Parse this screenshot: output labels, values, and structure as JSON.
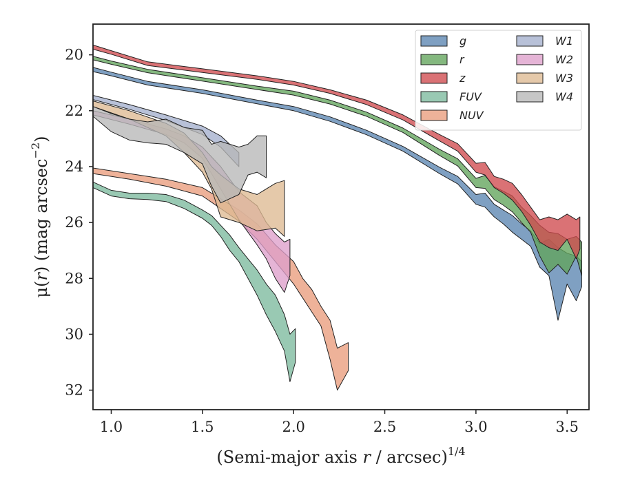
{
  "chart_data": {
    "type": "area",
    "xlabel_main": "(Semi-major axis ",
    "xlabel_var": "r",
    "xlabel_unit": " / arcsec)",
    "xlabel_sup": "1/4",
    "ylabel_pre": "μ(",
    "ylabel_var": "r",
    "ylabel_mid": ") (mag arcsec",
    "ylabel_sup": "−2",
    "ylabel_post": ")",
    "xlim": [
      0.9,
      3.62
    ],
    "ylim": [
      32.7,
      18.9
    ],
    "y_inverted": true,
    "xticks": [
      1.0,
      1.5,
      2.0,
      2.5,
      3.0,
      3.5
    ],
    "xtick_labels": [
      "1.0",
      "1.5",
      "2.0",
      "2.5",
      "3.0",
      "3.5"
    ],
    "yticks": [
      20,
      22,
      24,
      26,
      28,
      30,
      32
    ],
    "ytick_labels": [
      "20",
      "22",
      "24",
      "26",
      "28",
      "30",
      "32"
    ],
    "grid": false,
    "legend_position": "top-right",
    "legend_columns": 2,
    "series": [
      {
        "name": "g",
        "color": "#5b85b1",
        "band": [
          [
            0.9,
            20.45,
            20.6
          ],
          [
            1.0,
            20.62,
            20.75
          ],
          [
            1.2,
            20.95,
            21.08
          ],
          [
            1.5,
            21.25,
            21.38
          ],
          [
            1.8,
            21.62,
            21.75
          ],
          [
            2.0,
            21.85,
            22.0
          ],
          [
            2.2,
            22.22,
            22.38
          ],
          [
            2.4,
            22.7,
            22.86
          ],
          [
            2.6,
            23.28,
            23.45
          ],
          [
            2.8,
            24.02,
            24.25
          ],
          [
            2.9,
            24.35,
            24.62
          ],
          [
            3.0,
            25.0,
            25.35
          ],
          [
            3.05,
            24.95,
            25.45
          ],
          [
            3.1,
            25.35,
            25.8
          ],
          [
            3.15,
            25.55,
            26.05
          ],
          [
            3.2,
            25.75,
            26.35
          ],
          [
            3.25,
            26.05,
            26.6
          ],
          [
            3.3,
            26.3,
            26.85
          ],
          [
            3.35,
            26.75,
            27.6
          ],
          [
            3.4,
            26.6,
            27.9
          ],
          [
            3.45,
            26.9,
            29.5
          ],
          [
            3.5,
            27.1,
            28.2
          ],
          [
            3.55,
            27.2,
            28.8
          ],
          [
            3.58,
            27.4,
            28.3
          ]
        ]
      },
      {
        "name": "r",
        "color": "#62a45b",
        "band": [
          [
            0.9,
            20.05,
            20.18
          ],
          [
            1.0,
            20.22,
            20.34
          ],
          [
            1.2,
            20.52,
            20.64
          ],
          [
            1.5,
            20.82,
            20.94
          ],
          [
            1.8,
            21.12,
            21.24
          ],
          [
            2.0,
            21.3,
            21.44
          ],
          [
            2.2,
            21.62,
            21.76
          ],
          [
            2.4,
            22.05,
            22.2
          ],
          [
            2.6,
            22.62,
            22.78
          ],
          [
            2.8,
            23.38,
            23.6
          ],
          [
            2.9,
            23.72,
            23.98
          ],
          [
            3.0,
            24.42,
            24.75
          ],
          [
            3.05,
            24.32,
            24.78
          ],
          [
            3.1,
            24.72,
            25.18
          ],
          [
            3.15,
            24.88,
            25.38
          ],
          [
            3.2,
            25.05,
            25.62
          ],
          [
            3.25,
            25.45,
            26.0
          ],
          [
            3.3,
            25.75,
            26.35
          ],
          [
            3.35,
            26.1,
            27.2
          ],
          [
            3.4,
            26.35,
            27.8
          ],
          [
            3.45,
            26.4,
            27.5
          ],
          [
            3.5,
            26.6,
            27.85
          ],
          [
            3.55,
            26.5,
            27.2
          ],
          [
            3.58,
            26.7,
            27.9
          ]
        ]
      },
      {
        "name": "z",
        "color": "#d04a4e",
        "band": [
          [
            0.9,
            19.65,
            19.8
          ],
          [
            1.0,
            19.85,
            19.98
          ],
          [
            1.2,
            20.25,
            20.38
          ],
          [
            1.5,
            20.5,
            20.63
          ],
          [
            1.8,
            20.75,
            20.88
          ],
          [
            2.0,
            20.95,
            21.08
          ],
          [
            2.2,
            21.25,
            21.38
          ],
          [
            2.4,
            21.62,
            21.78
          ],
          [
            2.6,
            22.15,
            22.33
          ],
          [
            2.8,
            22.85,
            23.08
          ],
          [
            2.9,
            23.18,
            23.45
          ],
          [
            3.0,
            23.88,
            24.2
          ],
          [
            3.05,
            23.85,
            24.3
          ],
          [
            3.1,
            24.35,
            24.75
          ],
          [
            3.15,
            24.45,
            24.95
          ],
          [
            3.2,
            24.6,
            25.2
          ],
          [
            3.25,
            25.0,
            25.6
          ],
          [
            3.3,
            25.45,
            26.1
          ],
          [
            3.35,
            25.9,
            26.7
          ],
          [
            3.4,
            25.8,
            26.9
          ],
          [
            3.45,
            25.9,
            27.0
          ],
          [
            3.5,
            25.7,
            26.6
          ],
          [
            3.55,
            25.9,
            27.3
          ],
          [
            3.57,
            25.8,
            26.95
          ]
        ]
      },
      {
        "name": "FUV",
        "color": "#7cba9e",
        "band": [
          [
            0.9,
            24.55,
            24.75
          ],
          [
            1.0,
            24.85,
            25.05
          ],
          [
            1.1,
            24.95,
            25.15
          ],
          [
            1.2,
            24.95,
            25.18
          ],
          [
            1.3,
            25.0,
            25.25
          ],
          [
            1.4,
            25.2,
            25.5
          ],
          [
            1.5,
            25.55,
            25.85
          ],
          [
            1.55,
            25.75,
            26.1
          ],
          [
            1.6,
            26.1,
            26.5
          ],
          [
            1.65,
            26.45,
            27.0
          ],
          [
            1.7,
            26.9,
            27.4
          ],
          [
            1.75,
            27.3,
            28.0
          ],
          [
            1.8,
            27.7,
            28.6
          ],
          [
            1.85,
            28.2,
            29.3
          ],
          [
            1.9,
            28.6,
            29.9
          ],
          [
            1.95,
            29.3,
            30.6
          ],
          [
            1.98,
            30.0,
            31.7
          ],
          [
            2.01,
            29.8,
            31.0
          ]
        ]
      },
      {
        "name": "NUV",
        "color": "#e99c7c",
        "band": [
          [
            0.9,
            24.05,
            24.25
          ],
          [
            1.1,
            24.25,
            24.45
          ],
          [
            1.3,
            24.45,
            24.7
          ],
          [
            1.5,
            24.75,
            25.05
          ],
          [
            1.6,
            25.15,
            25.5
          ],
          [
            1.7,
            25.55,
            25.95
          ],
          [
            1.8,
            26.05,
            26.6
          ],
          [
            1.9,
            26.8,
            27.4
          ],
          [
            2.0,
            27.4,
            28.2
          ],
          [
            2.05,
            28.0,
            28.7
          ],
          [
            2.1,
            28.4,
            29.2
          ],
          [
            2.15,
            29.0,
            29.7
          ],
          [
            2.2,
            29.5,
            30.9
          ],
          [
            2.24,
            30.5,
            32.0
          ],
          [
            2.3,
            30.3,
            31.3
          ]
        ]
      },
      {
        "name": "W1",
        "color": "#a4b0cd",
        "band": [
          [
            0.9,
            21.45,
            21.6
          ],
          [
            1.1,
            21.78,
            21.95
          ],
          [
            1.3,
            22.15,
            22.35
          ],
          [
            1.5,
            22.55,
            22.85
          ],
          [
            1.6,
            22.9,
            23.3
          ],
          [
            1.7,
            23.5,
            24.0
          ]
        ]
      },
      {
        "name": "W2",
        "color": "#de9fcb",
        "band": [
          [
            0.9,
            22.0,
            22.15
          ],
          [
            1.1,
            22.3,
            22.48
          ],
          [
            1.3,
            22.65,
            22.85
          ],
          [
            1.4,
            22.9,
            23.15
          ],
          [
            1.5,
            23.3,
            23.7
          ],
          [
            1.6,
            24.0,
            24.8
          ],
          [
            1.7,
            24.9,
            25.9
          ],
          [
            1.8,
            25.4,
            26.8
          ],
          [
            1.85,
            26.0,
            27.3
          ],
          [
            1.9,
            26.4,
            28.0
          ],
          [
            1.95,
            26.7,
            28.5
          ],
          [
            1.98,
            26.6,
            27.9
          ]
        ]
      },
      {
        "name": "W3",
        "color": "#deba92",
        "band": [
          [
            0.9,
            21.65,
            21.85
          ],
          [
            1.1,
            22.0,
            22.3
          ],
          [
            1.3,
            22.45,
            22.9
          ],
          [
            1.4,
            22.8,
            23.5
          ],
          [
            1.5,
            23.5,
            24.2
          ],
          [
            1.55,
            24.0,
            24.8
          ],
          [
            1.6,
            24.3,
            25.8
          ],
          [
            1.7,
            24.8,
            26.0
          ],
          [
            1.8,
            25.0,
            26.3
          ],
          [
            1.9,
            24.6,
            26.2
          ],
          [
            1.95,
            24.5,
            26.5
          ]
        ]
      },
      {
        "name": "W4",
        "color": "#b7b7b7",
        "band": [
          [
            0.9,
            21.85,
            22.2
          ],
          [
            1.0,
            22.1,
            22.75
          ],
          [
            1.1,
            22.3,
            23.05
          ],
          [
            1.2,
            22.4,
            23.15
          ],
          [
            1.3,
            22.3,
            23.2
          ],
          [
            1.4,
            22.6,
            23.5
          ],
          [
            1.5,
            22.7,
            23.9
          ],
          [
            1.55,
            23.2,
            24.7
          ],
          [
            1.6,
            23.1,
            25.3
          ],
          [
            1.7,
            23.3,
            25.0
          ],
          [
            1.75,
            23.2,
            24.3
          ],
          [
            1.8,
            22.9,
            24.2
          ],
          [
            1.85,
            22.9,
            24.4
          ]
        ]
      }
    ]
  }
}
